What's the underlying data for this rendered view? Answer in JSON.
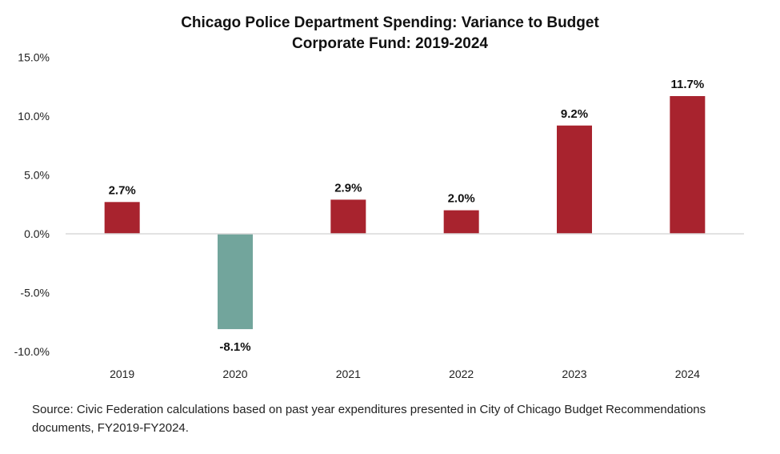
{
  "chart_data": {
    "type": "bar",
    "title_line1": "Chicago Police Department Spending: Variance to Budget",
    "title_line2": "Corporate Fund: 2019-2024",
    "categories": [
      "2019",
      "2020",
      "2021",
      "2022",
      "2023",
      "2024"
    ],
    "values": [
      2.7,
      -8.1,
      2.9,
      2.0,
      9.2,
      11.7
    ],
    "data_labels": [
      "2.7%",
      "-8.1%",
      "2.9%",
      "2.0%",
      "9.2%",
      "11.7%"
    ],
    "yticks": [
      15,
      10,
      5,
      0,
      -5,
      -10
    ],
    "ytick_labels": [
      "15.0%",
      "10.0%",
      "5.0%",
      "0.0%",
      "-5.0%",
      "-10.0%"
    ],
    "ylim": [
      -10,
      15
    ],
    "grid": false,
    "colors": {
      "positive": "#A8232E",
      "negative": "#72A59C",
      "zero_line": "#d9d9d9"
    }
  },
  "source": "Source: Civic Federation calculations based on past year expenditures presented in City of Chicago Budget Recommendations documents, FY2019-FY2024."
}
